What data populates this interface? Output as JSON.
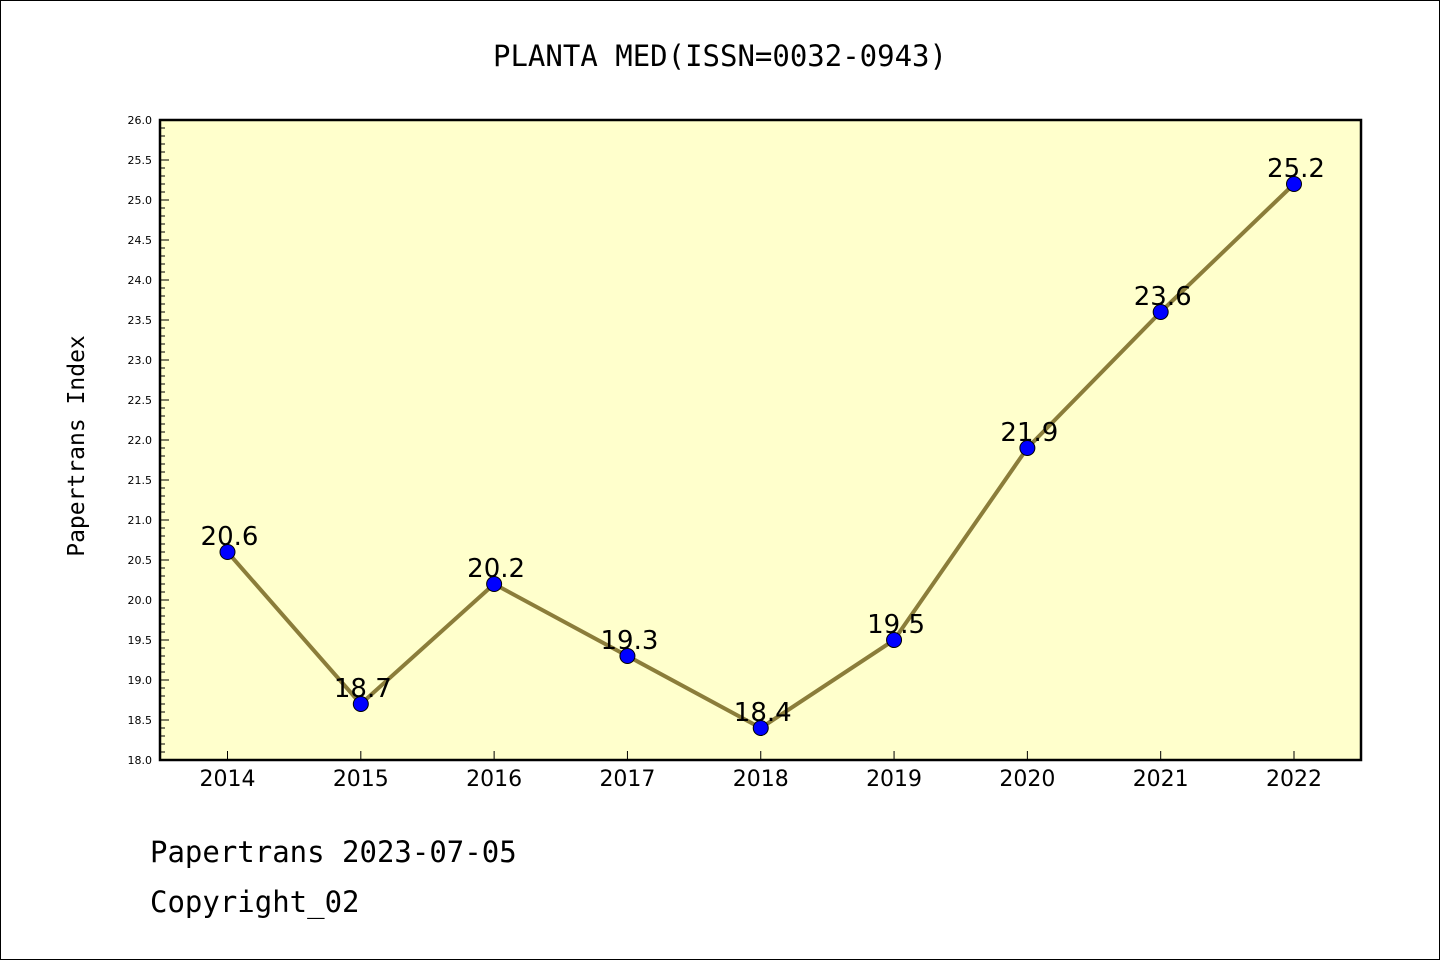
{
  "colors": {
    "plot_background": "#ffffcc",
    "line": "#8b7d3a",
    "marker": "#0000ff",
    "text": "#000000"
  },
  "chart_data": {
    "type": "line",
    "title": "PLANTA MED(ISSN=0032-0943)",
    "ylabel": "Papertrans Index",
    "xlabel": "",
    "categories": [
      "2014",
      "2015",
      "2016",
      "2017",
      "2018",
      "2019",
      "2020",
      "2021",
      "2022"
    ],
    "values": [
      20.6,
      18.7,
      20.2,
      19.3,
      18.4,
      19.5,
      21.9,
      23.6,
      25.2
    ],
    "data_labels": [
      "20.6",
      "18.7",
      "20.2",
      "19.3",
      "18.4",
      "19.5",
      "21.9",
      "23.6",
      "25.2"
    ],
    "ylim": [
      18.0,
      26.0
    ],
    "yticks": [
      "18.0",
      "18.5",
      "19.0",
      "19.5",
      "20.0",
      "20.5",
      "21.0",
      "21.5",
      "22.0",
      "22.5",
      "23.0",
      "23.5",
      "24.0",
      "24.5",
      "25.0",
      "25.5",
      "26.0"
    ],
    "grid": false,
    "legend": "none"
  },
  "footer": {
    "line1": "Papertrans 2023-07-05",
    "line2": "Copyright_02"
  }
}
